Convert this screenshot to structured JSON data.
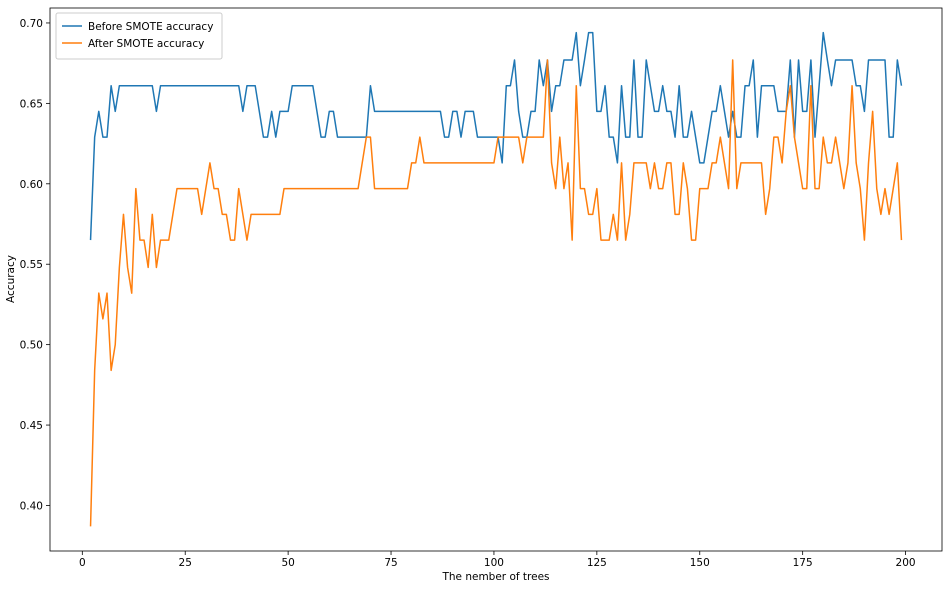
{
  "chart_data": {
    "type": "line",
    "xlabel": "The nember of trees",
    "ylabel": "Accuracy",
    "x": [
      2,
      3,
      4,
      5,
      6,
      7,
      8,
      9,
      10,
      11,
      12,
      13,
      14,
      15,
      16,
      17,
      18,
      19,
      20,
      21,
      22,
      23,
      24,
      25,
      26,
      27,
      28,
      29,
      30,
      31,
      32,
      33,
      34,
      35,
      36,
      37,
      38,
      39,
      40,
      41,
      42,
      43,
      44,
      45,
      46,
      47,
      48,
      49,
      50,
      51,
      52,
      53,
      54,
      55,
      56,
      57,
      58,
      59,
      60,
      61,
      62,
      63,
      64,
      65,
      66,
      67,
      68,
      69,
      70,
      71,
      72,
      73,
      74,
      75,
      76,
      77,
      78,
      79,
      80,
      81,
      82,
      83,
      84,
      85,
      86,
      87,
      88,
      89,
      90,
      91,
      92,
      93,
      94,
      95,
      96,
      97,
      98,
      99,
      100,
      101,
      102,
      103,
      104,
      105,
      106,
      107,
      108,
      109,
      110,
      111,
      112,
      113,
      114,
      115,
      116,
      117,
      118,
      119,
      120,
      121,
      122,
      123,
      124,
      125,
      126,
      127,
      128,
      129,
      130,
      131,
      132,
      133,
      134,
      135,
      136,
      137,
      138,
      139,
      140,
      141,
      142,
      143,
      144,
      145,
      146,
      147,
      148,
      149,
      150,
      151,
      152,
      153,
      154,
      155,
      156,
      157,
      158,
      159,
      160,
      161,
      162,
      163,
      164,
      165,
      166,
      167,
      168,
      169,
      170,
      171,
      172,
      173,
      174,
      175,
      176,
      177,
      178,
      179,
      180,
      181,
      182,
      183,
      184,
      185,
      186,
      187,
      188,
      189,
      190,
      191,
      192,
      193,
      194,
      195,
      196,
      197,
      198,
      199
    ],
    "series": [
      {
        "name": "Before SMOTE accuracy",
        "color": "#1f77b4",
        "values": [
          0.565,
          0.629,
          0.645,
          0.629,
          0.629,
          0.661,
          0.645,
          0.661,
          0.661,
          0.661,
          0.661,
          0.661,
          0.661,
          0.661,
          0.661,
          0.661,
          0.645,
          0.661,
          0.661,
          0.661,
          0.661,
          0.661,
          0.661,
          0.661,
          0.661,
          0.661,
          0.661,
          0.661,
          0.661,
          0.661,
          0.661,
          0.661,
          0.661,
          0.661,
          0.661,
          0.661,
          0.661,
          0.645,
          0.661,
          0.661,
          0.661,
          0.645,
          0.629,
          0.629,
          0.645,
          0.629,
          0.645,
          0.645,
          0.645,
          0.661,
          0.661,
          0.661,
          0.661,
          0.661,
          0.661,
          0.645,
          0.629,
          0.629,
          0.645,
          0.645,
          0.629,
          0.629,
          0.629,
          0.629,
          0.629,
          0.629,
          0.629,
          0.629,
          0.661,
          0.645,
          0.645,
          0.645,
          0.645,
          0.645,
          0.645,
          0.645,
          0.645,
          0.645,
          0.645,
          0.645,
          0.645,
          0.645,
          0.645,
          0.645,
          0.645,
          0.645,
          0.629,
          0.629,
          0.645,
          0.645,
          0.629,
          0.645,
          0.645,
          0.645,
          0.629,
          0.629,
          0.629,
          0.629,
          0.629,
          0.629,
          0.613,
          0.661,
          0.661,
          0.677,
          0.645,
          0.629,
          0.629,
          0.645,
          0.645,
          0.677,
          0.661,
          0.677,
          0.645,
          0.661,
          0.661,
          0.677,
          0.677,
          0.677,
          0.694,
          0.661,
          0.677,
          0.694,
          0.694,
          0.645,
          0.645,
          0.661,
          0.629,
          0.629,
          0.613,
          0.661,
          0.629,
          0.629,
          0.677,
          0.629,
          0.629,
          0.677,
          0.661,
          0.645,
          0.645,
          0.661,
          0.645,
          0.645,
          0.629,
          0.661,
          0.629,
          0.629,
          0.645,
          0.629,
          0.613,
          0.613,
          0.629,
          0.645,
          0.645,
          0.661,
          0.645,
          0.629,
          0.645,
          0.629,
          0.629,
          0.661,
          0.661,
          0.677,
          0.629,
          0.661,
          0.661,
          0.661,
          0.661,
          0.645,
          0.645,
          0.645,
          0.677,
          0.629,
          0.677,
          0.645,
          0.645,
          0.677,
          0.629,
          0.661,
          0.694,
          0.677,
          0.661,
          0.677,
          0.677,
          0.677,
          0.677,
          0.677,
          0.661,
          0.661,
          0.645,
          0.677,
          0.677,
          0.677,
          0.677,
          0.677,
          0.629,
          0.629,
          0.677,
          0.661
        ]
      },
      {
        "name": "After SMOTE accuracy",
        "color": "#ff7f0e",
        "values": [
          0.387,
          0.484,
          0.532,
          0.516,
          0.532,
          0.484,
          0.5,
          0.548,
          0.581,
          0.548,
          0.532,
          0.597,
          0.565,
          0.565,
          0.548,
          0.581,
          0.548,
          0.565,
          0.565,
          0.565,
          0.581,
          0.597,
          0.597,
          0.597,
          0.597,
          0.597,
          0.597,
          0.581,
          0.597,
          0.613,
          0.597,
          0.597,
          0.581,
          0.581,
          0.565,
          0.565,
          0.597,
          0.581,
          0.565,
          0.581,
          0.581,
          0.581,
          0.581,
          0.581,
          0.581,
          0.581,
          0.581,
          0.597,
          0.597,
          0.597,
          0.597,
          0.597,
          0.597,
          0.597,
          0.597,
          0.597,
          0.597,
          0.597,
          0.597,
          0.597,
          0.597,
          0.597,
          0.597,
          0.597,
          0.597,
          0.597,
          0.613,
          0.629,
          0.629,
          0.597,
          0.597,
          0.597,
          0.597,
          0.597,
          0.597,
          0.597,
          0.597,
          0.597,
          0.613,
          0.613,
          0.629,
          0.613,
          0.613,
          0.613,
          0.613,
          0.613,
          0.613,
          0.613,
          0.613,
          0.613,
          0.613,
          0.613,
          0.613,
          0.613,
          0.613,
          0.613,
          0.613,
          0.613,
          0.613,
          0.629,
          0.629,
          0.629,
          0.629,
          0.629,
          0.629,
          0.613,
          0.629,
          0.629,
          0.629,
          0.629,
          0.629,
          0.677,
          0.613,
          0.597,
          0.629,
          0.597,
          0.613,
          0.565,
          0.661,
          0.597,
          0.597,
          0.581,
          0.581,
          0.597,
          0.565,
          0.565,
          0.565,
          0.581,
          0.565,
          0.613,
          0.565,
          0.581,
          0.613,
          0.613,
          0.613,
          0.613,
          0.597,
          0.613,
          0.597,
          0.597,
          0.613,
          0.613,
          0.581,
          0.581,
          0.613,
          0.597,
          0.565,
          0.565,
          0.597,
          0.597,
          0.597,
          0.613,
          0.613,
          0.629,
          0.613,
          0.597,
          0.677,
          0.597,
          0.613,
          0.613,
          0.613,
          0.613,
          0.613,
          0.613,
          0.581,
          0.597,
          0.629,
          0.629,
          0.613,
          0.645,
          0.661,
          0.629,
          0.613,
          0.597,
          0.597,
          0.661,
          0.597,
          0.597,
          0.629,
          0.613,
          0.613,
          0.629,
          0.613,
          0.597,
          0.613,
          0.661,
          0.613,
          0.597,
          0.565,
          0.613,
          0.645,
          0.597,
          0.581,
          0.597,
          0.581,
          0.597,
          0.613,
          0.565
        ]
      }
    ],
    "xlim": [
      -7.85,
      208.85
    ],
    "xticks": [
      0,
      25,
      50,
      75,
      100,
      125,
      150,
      175,
      200
    ],
    "ylim": [
      0.3717,
      0.7093
    ],
    "yticks": [
      {
        "value": 0.4,
        "label": "0.40"
      },
      0.45,
      {
        "value": 0.5,
        "label": "0.50"
      },
      0.55,
      {
        "value": 0.6,
        "label": "0.60"
      },
      0.65,
      {
        "value": 0.7,
        "label": "0.70"
      }
    ],
    "grid": false,
    "legend": "upper left"
  }
}
